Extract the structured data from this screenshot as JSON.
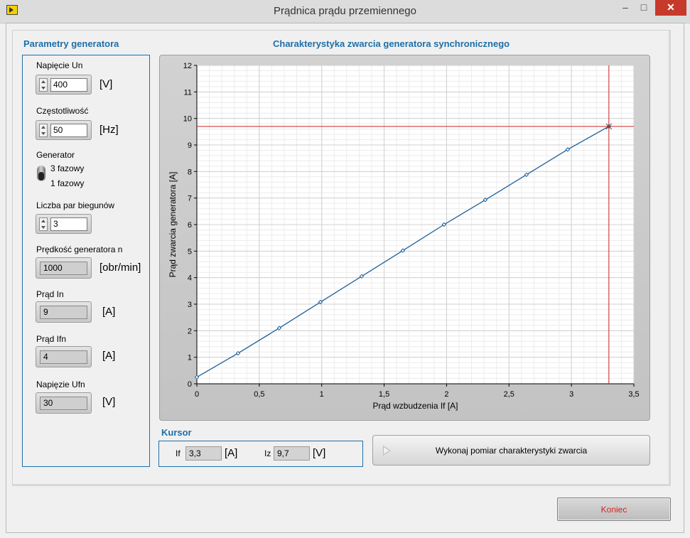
{
  "window": {
    "title": "Prądnica prądu przemiennego",
    "buttons": {
      "minimize": "–",
      "maximize": "□",
      "close": "✕"
    }
  },
  "params": {
    "title": "Parametry generatora",
    "voltage": {
      "label": "Napięcie Un",
      "value": "400",
      "unit": "[V]"
    },
    "frequency": {
      "label": "Częstotliwość",
      "value": "50",
      "unit": "[Hz]"
    },
    "generator": {
      "label": "Generator",
      "option_top": "3 fazowy",
      "option_bottom": "1 fazowy",
      "selected": "3 fazowy"
    },
    "pole_pairs": {
      "label": "Liczba par biegunów",
      "value": "3"
    },
    "speed": {
      "label": "Prędkość generatora n",
      "value": "1000",
      "unit": "[obr/min]"
    },
    "current_in": {
      "label": "Prąd In",
      "value": "9",
      "unit": "[A]"
    },
    "current_ifn": {
      "label": "Prąd Ifn",
      "value": "4",
      "unit": "[A]"
    },
    "voltage_ufn": {
      "label": "Napięzie Ufn",
      "value": "30",
      "unit": "[V]"
    }
  },
  "chart": {
    "title": "Charakterystyka zwarcia generatora synchronicznego"
  },
  "chart_data": {
    "type": "line",
    "xlabel": "Prąd wzbudzenia If [A]",
    "ylabel": "Prąd zwarcia generatora [A]",
    "xlim": [
      0,
      3.5
    ],
    "ylim": [
      0,
      12
    ],
    "x_ticks": [
      "0",
      "0,5",
      "1",
      "1,5",
      "2",
      "2,5",
      "3",
      "3,5"
    ],
    "y_ticks": [
      "0",
      "1",
      "2",
      "3",
      "4",
      "5",
      "6",
      "7",
      "8",
      "9",
      "10",
      "11",
      "12"
    ],
    "grid": true,
    "series": [
      {
        "x": [
          0,
          0.33,
          0.66,
          0.99,
          1.32,
          1.65,
          1.98,
          2.31,
          2.64,
          2.97,
          3.3
        ],
        "y": [
          0.25,
          1.15,
          2.1,
          3.08,
          4.05,
          5.02,
          6.0,
          6.93,
          7.88,
          8.83,
          9.7
        ],
        "color": "#1f5f9a"
      }
    ],
    "cursor": {
      "x": 3.3,
      "y": 9.7,
      "color": "#cc2222"
    }
  },
  "cursor_panel": {
    "title": "Kursor",
    "if_label": "If",
    "if_value": "3,3",
    "if_unit": "[A]",
    "iz_label": "Iz",
    "iz_value": "9,7",
    "iz_unit": "[V]"
  },
  "buttons": {
    "measure": "Wykonaj pomiar charakterystyki zwarcia",
    "end": "Koniec"
  }
}
